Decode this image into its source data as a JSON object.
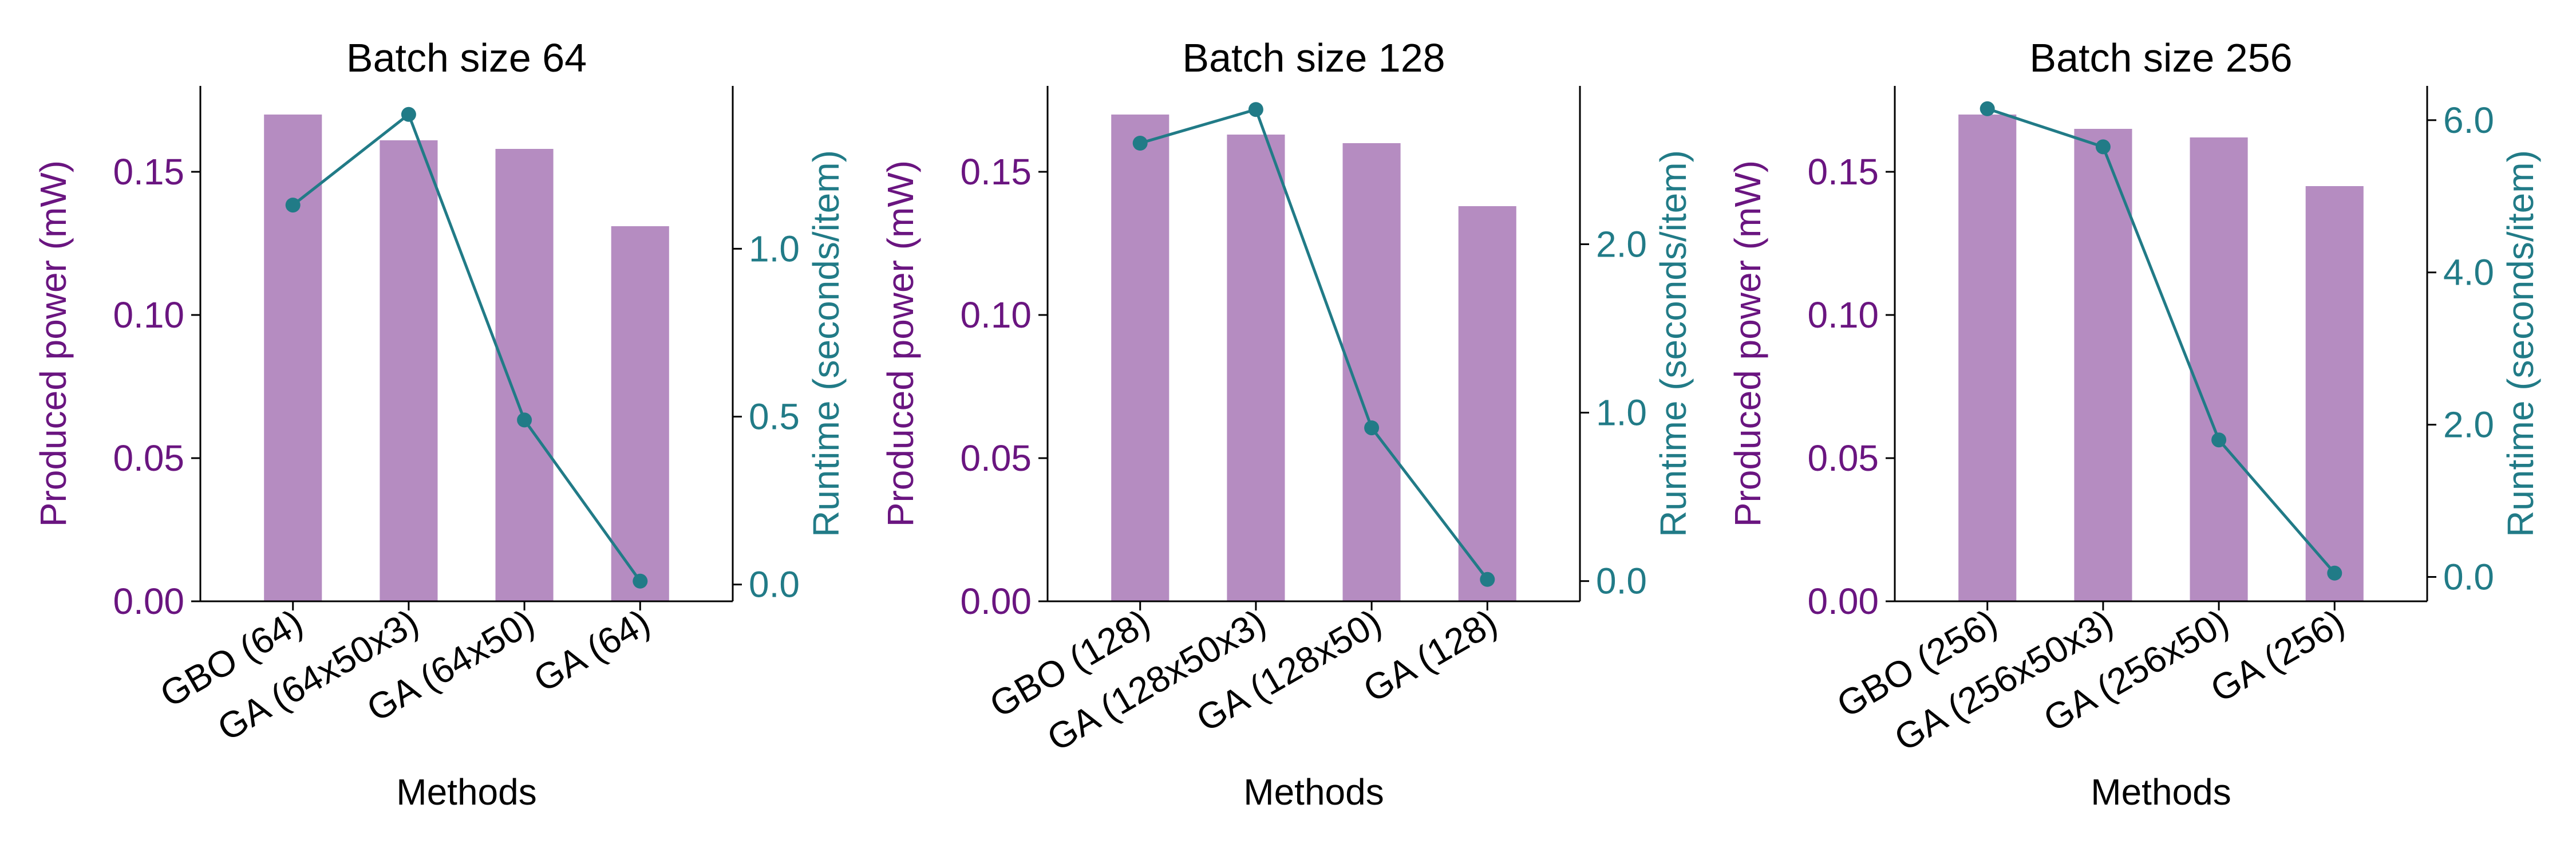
{
  "colors": {
    "bar": "#b58cc1",
    "line": "#217b87",
    "left_axis_text": "#6a1580",
    "right_axis_text": "#217b87",
    "axis": "#000000"
  },
  "chart_data": [
    {
      "type": "bar+line",
      "title": "Batch size 64",
      "xlabel": "Methods",
      "ylabel_left": "Produced power (mW)",
      "ylabel_right": "Runtime (seconds/item)",
      "categories": [
        "GBO (64)",
        "GA (64x50x3)",
        "GA (64x50)",
        "GA (64)"
      ],
      "bar_values": [
        0.17,
        0.161,
        0.158,
        0.131
      ],
      "line_values": [
        1.13,
        1.4,
        0.49,
        0.01
      ],
      "ylim_left": [
        0,
        0.18
      ],
      "yticks_left": [
        0,
        0.05,
        0.1,
        0.15
      ],
      "yticklabels_left": [
        "0.00",
        "0.05",
        "0.10",
        "0.15"
      ],
      "ylim_right": [
        -0.05,
        1.485
      ],
      "yticks_right": [
        0,
        0.5,
        1.0
      ],
      "yticklabels_right": [
        "0.0",
        "0.5",
        "1.0"
      ],
      "grid": false
    },
    {
      "type": "bar+line",
      "title": "Batch size 128",
      "xlabel": "Methods",
      "ylabel_left": "Produced power (mW)",
      "ylabel_right": "Runtime (seconds/item)",
      "categories": [
        "GBO (128)",
        "GA (128x50x3)",
        "GA (128x50)",
        "GA (128)"
      ],
      "bar_values": [
        0.17,
        0.163,
        0.16,
        0.138
      ],
      "line_values": [
        2.6,
        2.8,
        0.91,
        0.01
      ],
      "ylim_left": [
        0,
        0.18
      ],
      "yticks_left": [
        0,
        0.05,
        0.1,
        0.15
      ],
      "yticklabels_left": [
        "0.00",
        "0.05",
        "0.10",
        "0.15"
      ],
      "ylim_right": [
        -0.12,
        2.94
      ],
      "yticks_right": [
        0,
        1.0,
        2.0
      ],
      "yticklabels_right": [
        "0.0",
        "1.0",
        "2.0"
      ],
      "grid": false
    },
    {
      "type": "bar+line",
      "title": "Batch size 256",
      "xlabel": "Methods",
      "ylabel_left": "Produced power (mW)",
      "ylabel_right": "Runtime (seconds/item)",
      "categories": [
        "GBO (256)",
        "GA (256x50x3)",
        "GA (256x50)",
        "GA (256)"
      ],
      "bar_values": [
        0.17,
        0.165,
        0.162,
        0.145
      ],
      "line_values": [
        6.15,
        5.65,
        1.8,
        0.05
      ],
      "ylim_left": [
        0,
        0.18
      ],
      "yticks_left": [
        0,
        0.05,
        0.1,
        0.15
      ],
      "yticklabels_left": [
        "0.00",
        "0.05",
        "0.10",
        "0.15"
      ],
      "ylim_right": [
        -0.32,
        6.45
      ],
      "yticks_right": [
        0,
        2.0,
        4.0,
        6.0
      ],
      "yticklabels_right": [
        "0.0",
        "2.0",
        "4.0",
        "6.0"
      ],
      "grid": false
    }
  ]
}
